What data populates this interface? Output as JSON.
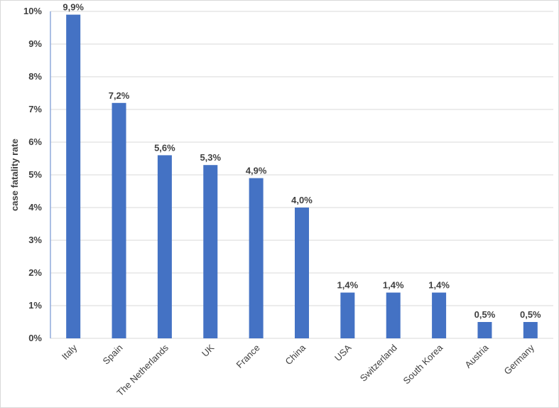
{
  "chart_data": {
    "type": "bar",
    "title": "",
    "xlabel": "",
    "ylabel": "case fatality rate",
    "categories": [
      "Italy",
      "Spain",
      "The Netherlands",
      "UK",
      "France",
      "China",
      "USA",
      "Switzerland",
      "South Korea",
      "Austria",
      "Germany"
    ],
    "values": [
      9.9,
      7.2,
      5.6,
      5.3,
      4.9,
      4.0,
      1.4,
      1.4,
      1.4,
      0.5,
      0.5
    ],
    "data_labels": [
      "9,9%",
      "7,2%",
      "5,6%",
      "5,3%",
      "4,9%",
      "4,0%",
      "1,4%",
      "1,4%",
      "1,4%",
      "0,5%",
      "0,5%"
    ],
    "y_ticks": [
      0,
      1,
      2,
      3,
      4,
      5,
      6,
      7,
      8,
      9,
      10
    ],
    "y_tick_labels": [
      "0%",
      "1%",
      "2%",
      "3%",
      "4%",
      "5%",
      "6%",
      "7%",
      "8%",
      "9%",
      "10%"
    ],
    "ylim": [
      0,
      10
    ],
    "grid": true,
    "legend": "none",
    "bar_color": "#4472C4",
    "grid_color": "#d9d9d9",
    "axis_color": "#8faadc"
  }
}
